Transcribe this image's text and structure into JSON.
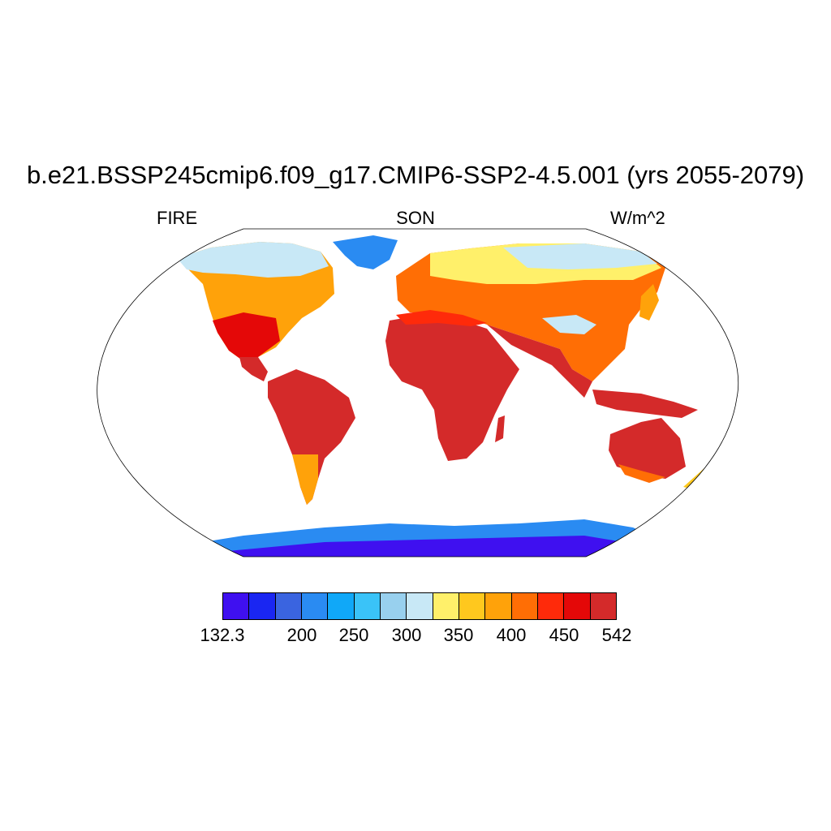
{
  "title": "b.e21.BSSP245cmip6.f09_g17.CMIP6-SSP2-4.5.001 (yrs 2055-2079)",
  "left_label": "FIRE",
  "center_label": "SON",
  "right_label": "W/m^2",
  "colorbar": {
    "colors": [
      "#3f10f0",
      "#1a26f2",
      "#3a64e0",
      "#2a8bf2",
      "#10a8f8",
      "#3ac3f8",
      "#98d0ee",
      "#c8e8f6",
      "#fff06a",
      "#ffc81e",
      "#ffa20a",
      "#ff6e05",
      "#ff2a0a",
      "#e40808",
      "#d42a2a"
    ],
    "labels": [
      "132.3",
      "200",
      "250",
      "300",
      "350",
      "400",
      "450",
      "542"
    ]
  },
  "colors": {
    "ocean": "#ffffff",
    "coastline": "#000000"
  }
}
